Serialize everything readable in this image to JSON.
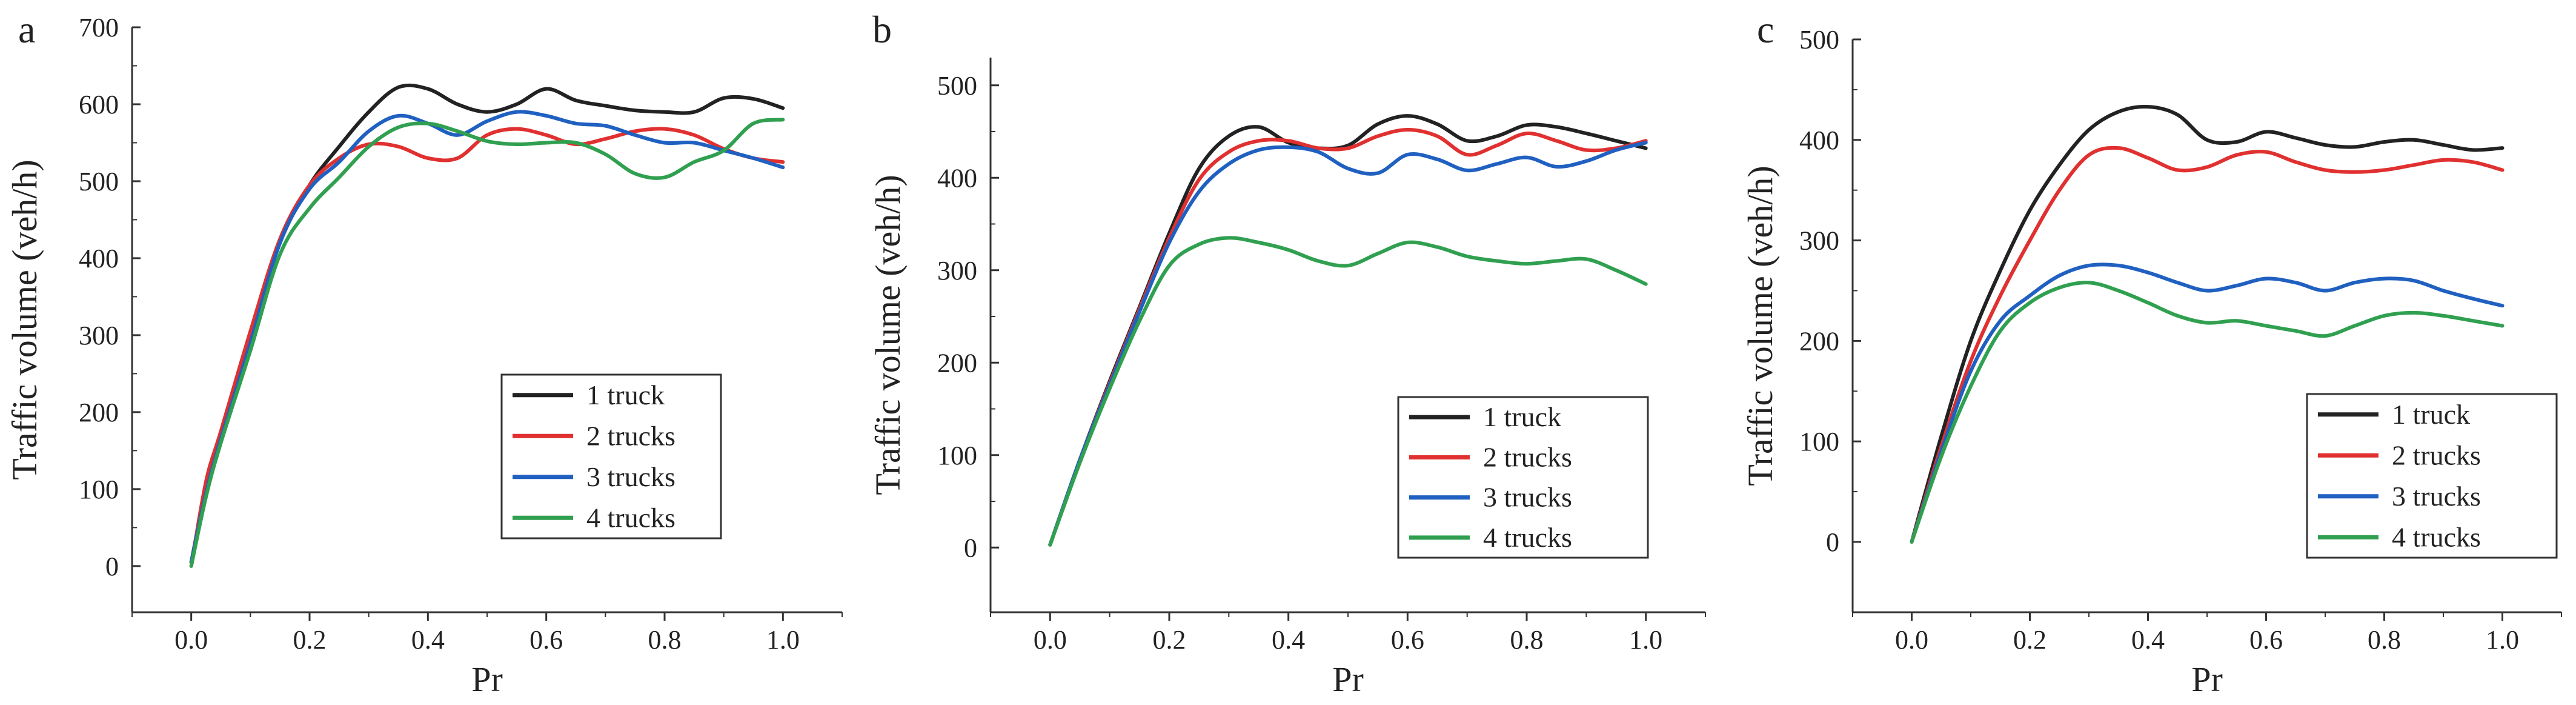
{
  "chart_data": [
    {
      "type": "line",
      "panel_label": "a",
      "xlabel": "Pr",
      "ylabel": "Traffic volume (veh/h)",
      "xlim": [
        -0.1,
        1.1
      ],
      "ylim": [
        -60,
        700
      ],
      "x_ticks": [
        0.0,
        0.2,
        0.4,
        0.6,
        0.8,
        1.0
      ],
      "y_ticks": [
        0,
        100,
        200,
        300,
        400,
        500,
        600,
        700
      ],
      "legend_position": "lower-right",
      "series": [
        {
          "name": "1 truck",
          "color": "#222222",
          "x": [
            0,
            0.025,
            0.05,
            0.1,
            0.15,
            0.2,
            0.25,
            0.3,
            0.35,
            0.4,
            0.45,
            0.5,
            0.55,
            0.6,
            0.65,
            0.7,
            0.75,
            0.8,
            0.85,
            0.9,
            0.95,
            1.0
          ],
          "y": [
            5,
            100,
            170,
            300,
            420,
            495,
            545,
            590,
            622,
            620,
            600,
            590,
            600,
            620,
            605,
            598,
            592,
            590,
            590,
            608,
            607,
            595
          ]
        },
        {
          "name": "2 trucks",
          "color": "#e03030",
          "x": [
            0,
            0.025,
            0.05,
            0.1,
            0.15,
            0.2,
            0.25,
            0.3,
            0.35,
            0.4,
            0.45,
            0.5,
            0.55,
            0.6,
            0.65,
            0.7,
            0.75,
            0.8,
            0.85,
            0.9,
            0.95,
            1.0
          ],
          "y": [
            0,
            110,
            175,
            305,
            425,
            495,
            530,
            548,
            545,
            530,
            530,
            560,
            568,
            560,
            548,
            555,
            565,
            568,
            560,
            542,
            530,
            525
          ]
        },
        {
          "name": "3 trucks",
          "color": "#2060c0",
          "x": [
            0,
            0.025,
            0.05,
            0.1,
            0.15,
            0.2,
            0.25,
            0.3,
            0.35,
            0.4,
            0.45,
            0.5,
            0.55,
            0.6,
            0.65,
            0.7,
            0.75,
            0.8,
            0.85,
            0.9,
            0.95,
            1.0
          ],
          "y": [
            5,
            95,
            165,
            290,
            420,
            490,
            525,
            565,
            585,
            575,
            560,
            578,
            590,
            585,
            575,
            572,
            560,
            550,
            550,
            540,
            530,
            518
          ]
        },
        {
          "name": "4 trucks",
          "color": "#30a050",
          "x": [
            0,
            0.025,
            0.05,
            0.1,
            0.15,
            0.2,
            0.25,
            0.3,
            0.35,
            0.4,
            0.45,
            0.5,
            0.55,
            0.6,
            0.65,
            0.7,
            0.75,
            0.8,
            0.85,
            0.9,
            0.95,
            1.0
          ],
          "y": [
            0,
            90,
            160,
            280,
            405,
            465,
            505,
            545,
            570,
            575,
            565,
            552,
            548,
            550,
            550,
            535,
            510,
            505,
            525,
            540,
            575,
            580
          ]
        }
      ]
    },
    {
      "type": "line",
      "panel_label": "b",
      "xlabel": "Pr",
      "ylabel": "Traffic volume (veh/h)",
      "xlim": [
        -0.1,
        1.1
      ],
      "ylim": [
        -70,
        530
      ],
      "x_ticks": [
        0.0,
        0.2,
        0.4,
        0.6,
        0.8,
        1.0
      ],
      "y_ticks": [
        0,
        100,
        200,
        300,
        400,
        500
      ],
      "legend_position": "lower-right",
      "series": [
        {
          "name": "1 truck",
          "color": "#222222",
          "x": [
            0,
            0.05,
            0.1,
            0.15,
            0.2,
            0.25,
            0.3,
            0.35,
            0.4,
            0.45,
            0.5,
            0.55,
            0.6,
            0.65,
            0.7,
            0.75,
            0.8,
            0.85,
            0.9,
            0.95,
            1.0
          ],
          "y": [
            3,
            95,
            180,
            260,
            340,
            410,
            445,
            455,
            438,
            432,
            435,
            458,
            467,
            458,
            440,
            445,
            457,
            455,
            448,
            440,
            432
          ]
        },
        {
          "name": "2 trucks",
          "color": "#e03030",
          "x": [
            0,
            0.05,
            0.1,
            0.15,
            0.2,
            0.25,
            0.3,
            0.35,
            0.4,
            0.45,
            0.5,
            0.55,
            0.6,
            0.65,
            0.7,
            0.75,
            0.8,
            0.85,
            0.9,
            0.95,
            1.0
          ],
          "y": [
            3,
            95,
            178,
            258,
            335,
            398,
            428,
            440,
            440,
            432,
            432,
            445,
            452,
            445,
            425,
            435,
            448,
            440,
            430,
            432,
            440
          ]
        },
        {
          "name": "3 trucks",
          "color": "#2060c0",
          "x": [
            0,
            0.05,
            0.1,
            0.15,
            0.2,
            0.25,
            0.3,
            0.35,
            0.4,
            0.45,
            0.5,
            0.55,
            0.6,
            0.65,
            0.7,
            0.75,
            0.8,
            0.85,
            0.9,
            0.95,
            1.0
          ],
          "y": [
            3,
            95,
            176,
            255,
            330,
            385,
            415,
            430,
            433,
            428,
            410,
            405,
            425,
            420,
            408,
            415,
            422,
            412,
            418,
            430,
            438
          ]
        },
        {
          "name": "4 trucks",
          "color": "#30a050",
          "x": [
            0,
            0.05,
            0.1,
            0.15,
            0.2,
            0.25,
            0.3,
            0.35,
            0.4,
            0.45,
            0.5,
            0.55,
            0.6,
            0.65,
            0.7,
            0.75,
            0.8,
            0.85,
            0.9,
            0.95,
            1.0
          ],
          "y": [
            3,
            92,
            172,
            245,
            305,
            328,
            335,
            330,
            322,
            310,
            305,
            318,
            330,
            325,
            315,
            310,
            307,
            310,
            312,
            300,
            285
          ]
        }
      ]
    },
    {
      "type": "line",
      "panel_label": "c",
      "xlabel": "Pr",
      "ylabel": "Traffic volume (veh/h)",
      "xlim": [
        -0.1,
        1.1
      ],
      "ylim": [
        -70,
        500
      ],
      "x_ticks": [
        0.0,
        0.2,
        0.4,
        0.6,
        0.8,
        1.0
      ],
      "y_ticks": [
        0,
        100,
        200,
        300,
        400,
        500
      ],
      "legend_position": "lower-right",
      "series": [
        {
          "name": "1 truck",
          "color": "#222222",
          "x": [
            0,
            0.05,
            0.1,
            0.15,
            0.2,
            0.25,
            0.3,
            0.35,
            0.4,
            0.45,
            0.5,
            0.55,
            0.6,
            0.65,
            0.7,
            0.75,
            0.8,
            0.85,
            0.9,
            0.95,
            1.0
          ],
          "y": [
            0,
            105,
            200,
            270,
            330,
            375,
            410,
            428,
            433,
            425,
            400,
            398,
            408,
            402,
            395,
            393,
            398,
            400,
            395,
            390,
            392
          ]
        },
        {
          "name": "2 trucks",
          "color": "#e03030",
          "x": [
            0,
            0.05,
            0.1,
            0.15,
            0.2,
            0.25,
            0.3,
            0.35,
            0.4,
            0.45,
            0.5,
            0.55,
            0.6,
            0.65,
            0.7,
            0.75,
            0.8,
            0.85,
            0.9,
            0.95,
            1.0
          ],
          "y": [
            0,
            95,
            180,
            245,
            300,
            350,
            385,
            392,
            382,
            370,
            373,
            385,
            388,
            378,
            370,
            368,
            370,
            375,
            380,
            378,
            370
          ]
        },
        {
          "name": "3 trucks",
          "color": "#2060c0",
          "x": [
            0,
            0.05,
            0.1,
            0.15,
            0.2,
            0.25,
            0.3,
            0.35,
            0.4,
            0.45,
            0.5,
            0.55,
            0.6,
            0.65,
            0.7,
            0.75,
            0.8,
            0.85,
            0.9,
            0.95,
            1.0
          ],
          "y": [
            0,
            90,
            170,
            220,
            245,
            265,
            275,
            275,
            268,
            258,
            250,
            255,
            262,
            258,
            250,
            258,
            262,
            260,
            250,
            242,
            235
          ]
        },
        {
          "name": "4 trucks",
          "color": "#30a050",
          "x": [
            0,
            0.05,
            0.1,
            0.15,
            0.2,
            0.25,
            0.3,
            0.35,
            0.4,
            0.45,
            0.5,
            0.55,
            0.6,
            0.65,
            0.7,
            0.75,
            0.8,
            0.85,
            0.9,
            0.95,
            1.0
          ],
          "y": [
            0,
            85,
            155,
            210,
            238,
            253,
            258,
            250,
            238,
            225,
            218,
            220,
            215,
            210,
            205,
            215,
            225,
            228,
            225,
            220,
            215
          ]
        }
      ]
    }
  ]
}
